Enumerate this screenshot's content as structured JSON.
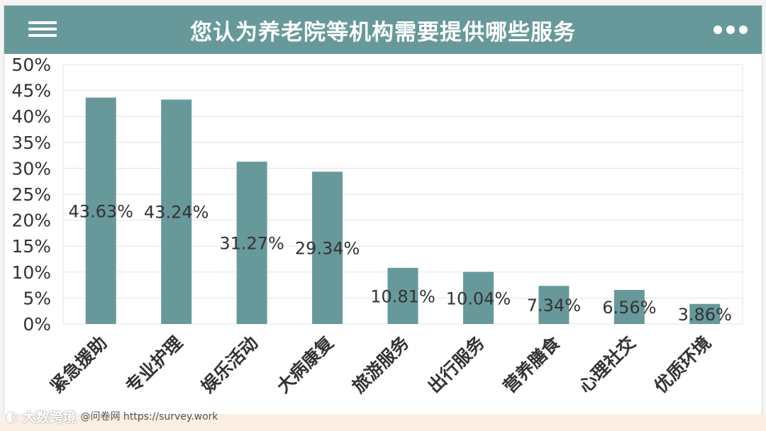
{
  "header": {
    "title": "您认为养老院等机构需要提供哪些服务",
    "menu_icon": "menu-icon",
    "more_icon": "more-options-icon"
  },
  "colors": {
    "header_bg": "#67999b",
    "bar": "#67999b",
    "grid": "#e3e3e3",
    "text": "#333333"
  },
  "chart_data": {
    "type": "bar",
    "title": "您认为养老院等机构需要提供哪些服务",
    "xlabel": "",
    "ylabel": "",
    "ylim": [
      0,
      50
    ],
    "yticks": [
      "0%",
      "5%",
      "10%",
      "15%",
      "20%",
      "25%",
      "30%",
      "35%",
      "40%",
      "45%",
      "50%"
    ],
    "grid": true,
    "categories": [
      "紧急援助",
      "专业护理",
      "娱乐活动",
      "大病康复",
      "旅游服务",
      "出行服务",
      "营养膳食",
      "心理社交",
      "优质环境"
    ],
    "values": [
      43.63,
      43.24,
      31.27,
      29.34,
      10.81,
      10.04,
      7.34,
      6.56,
      3.86
    ],
    "data_labels": [
      "43.63%",
      "43.24%",
      "31.27%",
      "29.34%",
      "10.81%",
      "10.04%",
      "7.34%",
      "6.56%",
      "3.86%"
    ]
  },
  "watermark": {
    "brand": "大数跨境",
    "url_text": "@问卷网 https://survey.work"
  }
}
